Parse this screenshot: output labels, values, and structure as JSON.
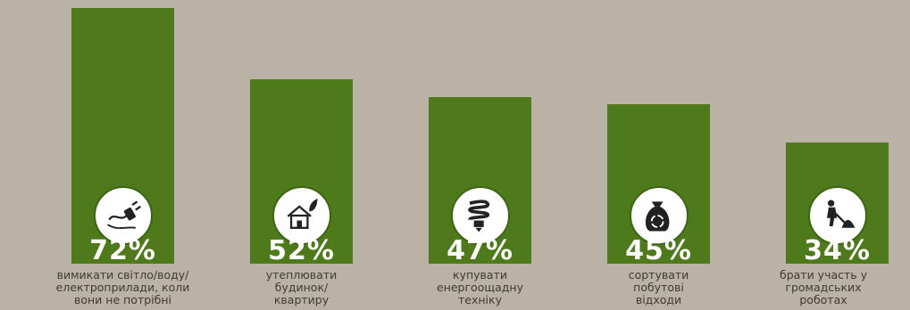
{
  "chart_data": {
    "type": "bar",
    "title": "",
    "xlabel": "",
    "ylabel": "",
    "ylim": [
      0,
      75
    ],
    "grid": false,
    "categories": [
      "вимикати світло/воду/\nелектроприлади, коли\nвони не потрібні",
      "утеплювати\nбудинок/\nквартиру",
      "купувати\nенергоощадну\nтехніку",
      "сортувати\nпобутові\nвідходи",
      "брати участь у\nгромадських\nроботах"
    ],
    "values": [
      72,
      52,
      47,
      45,
      34
    ],
    "value_labels": [
      "72%",
      "52%",
      "47%",
      "45%",
      "34%"
    ],
    "icons": [
      "plug-icon",
      "eco-house-icon",
      "energy-saving-bulb-icon",
      "recycle-bag-icon",
      "shoveling-worker-icon"
    ],
    "colors": {
      "bar": "#4f7a1c",
      "background": "#bab3a5",
      "label": "#ffffff",
      "caption": "#3f3a33"
    }
  }
}
